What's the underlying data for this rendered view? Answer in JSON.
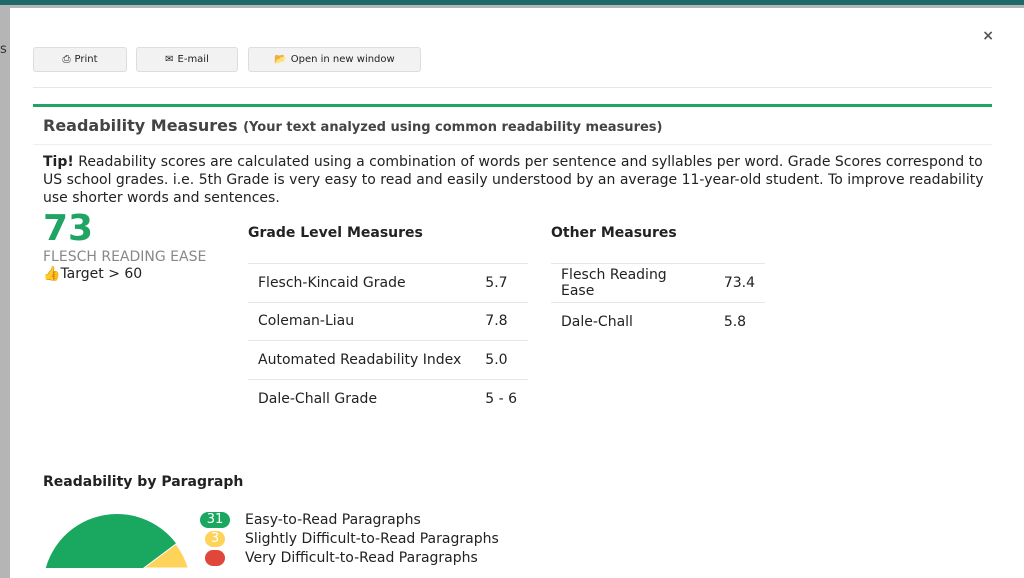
{
  "toolbar": {
    "print": "Print",
    "email": "E-mail",
    "open": "Open in new window",
    "close": "×"
  },
  "behind_text": "s",
  "header": {
    "title": "Readability Measures",
    "subtitle": "(Your text analyzed using common readability measures)"
  },
  "tip": {
    "label": "Tip!",
    "text": " Readability scores are calculated using a combination of words per sentence and syllables per word. Grade Scores correspond to US school grades. i.e. 5th Grade is very easy to read and easily understood by an average 11-year-old student. To improve readability use shorter words and sentences."
  },
  "score": {
    "value": "73",
    "label": "FLESCH READING EASE",
    "target": "Target > 60"
  },
  "grade": {
    "title": "Grade Level Measures",
    "rows": [
      {
        "name": "Flesch-Kincaid Grade",
        "value": "5.7"
      },
      {
        "name": "Coleman-Liau",
        "value": "7.8"
      },
      {
        "name": "Automated Readability Index",
        "value": "5.0"
      },
      {
        "name": "Dale-Chall Grade",
        "value": "5 - 6"
      }
    ]
  },
  "other": {
    "title": "Other Measures",
    "rows": [
      {
        "name": "Flesch Reading Ease",
        "value": "73.4"
      },
      {
        "name": "Dale-Chall",
        "value": "5.8"
      }
    ]
  },
  "paragraph": {
    "title": "Readability by Paragraph",
    "legend": [
      {
        "count": "31",
        "label": "Easy-to-Read Paragraphs",
        "color": "#1aa760"
      },
      {
        "count": "3",
        "label": "Slightly Difficult-to-Read Paragraphs",
        "color": "#fdd35a"
      },
      {
        "count": "",
        "label": "Very Difficult-to-Read Paragraphs",
        "color": "#e0463a"
      }
    ]
  }
}
